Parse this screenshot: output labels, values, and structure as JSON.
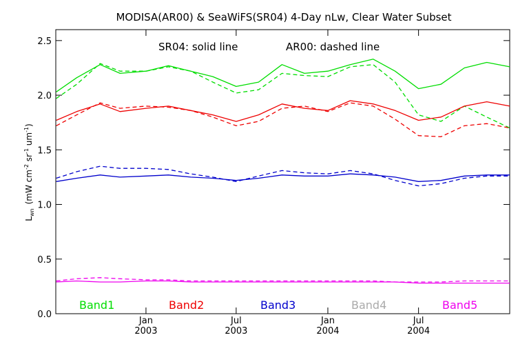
{
  "chart_data": {
    "type": "line",
    "title": "MODISA(AR00) & SeaWiFS(SR04) 4-Day nLw, Clear Water Subset",
    "annotation_solid": "SR04: solid line",
    "annotation_dashed": "AR00: dashed line",
    "ylabel": {
      "main": "L",
      "sub": "wn",
      "units_open": "(mW cm",
      "exp1": "-2",
      "sr": " sr",
      "exp2": "-1",
      "um": " um",
      "exp3": "-1",
      "units_close": ")"
    },
    "ylim": [
      0.0,
      2.6
    ],
    "yticks": [
      "0.0",
      "0.5",
      "1.0",
      "1.5",
      "2.0",
      "2.5"
    ],
    "x_range": [
      "2002-07-04",
      "2004-12-31"
    ],
    "xticks": [
      {
        "date": "2003-01-01",
        "month": "Jan",
        "year": "2003"
      },
      {
        "date": "2003-07-01",
        "month": "Jul",
        "year": "2003"
      },
      {
        "date": "2004-01-01",
        "month": "Jan",
        "year": "2004"
      },
      {
        "date": "2004-07-01",
        "month": "Jul",
        "year": "2004"
      }
    ],
    "x": [
      "2002-07-05",
      "2002-08-15",
      "2002-10-01",
      "2002-11-10",
      "2003-01-01",
      "2003-02-15",
      "2003-04-01",
      "2003-05-15",
      "2003-07-01",
      "2003-08-15",
      "2003-10-01",
      "2003-11-15",
      "2004-01-01",
      "2004-02-15",
      "2004-04-01",
      "2004-05-15",
      "2004-07-01",
      "2004-08-15",
      "2004-10-01",
      "2004-11-15",
      "2004-12-31"
    ],
    "series": [
      {
        "name": "Band1",
        "style": "solid",
        "color": "#00dd00",
        "values": [
          2.03,
          2.16,
          2.28,
          2.2,
          2.22,
          2.27,
          2.22,
          2.17,
          2.08,
          2.12,
          2.28,
          2.2,
          2.22,
          2.28,
          2.33,
          2.22,
          2.06,
          2.1,
          2.25,
          2.3,
          2.26
        ]
      },
      {
        "name": "Band1",
        "style": "dashed",
        "color": "#00dd00",
        "values": [
          1.97,
          2.1,
          2.29,
          2.22,
          2.22,
          2.26,
          2.22,
          2.12,
          2.02,
          2.05,
          2.2,
          2.18,
          2.17,
          2.26,
          2.28,
          2.12,
          1.82,
          1.76,
          1.9,
          1.8,
          1.7
        ]
      },
      {
        "name": "Band2",
        "style": "solid",
        "color": "#ee0000",
        "values": [
          1.77,
          1.85,
          1.92,
          1.85,
          1.88,
          1.9,
          1.86,
          1.82,
          1.76,
          1.82,
          1.92,
          1.88,
          1.86,
          1.95,
          1.92,
          1.86,
          1.77,
          1.8,
          1.9,
          1.94,
          1.9
        ]
      },
      {
        "name": "Band2",
        "style": "dashed",
        "color": "#ee0000",
        "values": [
          1.72,
          1.82,
          1.93,
          1.88,
          1.9,
          1.89,
          1.86,
          1.8,
          1.72,
          1.76,
          1.88,
          1.9,
          1.85,
          1.93,
          1.9,
          1.78,
          1.63,
          1.62,
          1.72,
          1.74,
          1.7
        ]
      },
      {
        "name": "Band3",
        "style": "solid",
        "color": "#0000cc",
        "values": [
          1.21,
          1.24,
          1.27,
          1.25,
          1.26,
          1.27,
          1.25,
          1.24,
          1.22,
          1.24,
          1.27,
          1.26,
          1.26,
          1.28,
          1.27,
          1.25,
          1.21,
          1.22,
          1.26,
          1.27,
          1.27
        ]
      },
      {
        "name": "Band3",
        "style": "dashed",
        "color": "#0000cc",
        "values": [
          1.24,
          1.3,
          1.35,
          1.33,
          1.33,
          1.32,
          1.28,
          1.25,
          1.21,
          1.26,
          1.31,
          1.29,
          1.28,
          1.31,
          1.28,
          1.22,
          1.17,
          1.19,
          1.24,
          1.26,
          1.26
        ]
      },
      {
        "name": "Band5",
        "style": "solid",
        "color": "#ee00ee",
        "values": [
          0.29,
          0.3,
          0.29,
          0.29,
          0.3,
          0.3,
          0.29,
          0.29,
          0.29,
          0.29,
          0.29,
          0.29,
          0.29,
          0.29,
          0.29,
          0.29,
          0.28,
          0.28,
          0.28,
          0.28,
          0.28
        ]
      },
      {
        "name": "Band5",
        "style": "dashed",
        "color": "#ee00ee",
        "values": [
          0.3,
          0.32,
          0.33,
          0.32,
          0.31,
          0.31,
          0.3,
          0.3,
          0.3,
          0.3,
          0.3,
          0.3,
          0.3,
          0.3,
          0.3,
          0.29,
          0.29,
          0.29,
          0.3,
          0.3,
          0.3
        ]
      }
    ],
    "legend": [
      {
        "label": "Band1",
        "color": "#00dd00"
      },
      {
        "label": "Band2",
        "color": "#ee0000"
      },
      {
        "label": "Band3",
        "color": "#0000cc"
      },
      {
        "label": "Band4",
        "color": "#aaaaaa"
      },
      {
        "label": "Band5",
        "color": "#ee00ee"
      }
    ],
    "legend_placement": "bottom",
    "grid": false
  }
}
